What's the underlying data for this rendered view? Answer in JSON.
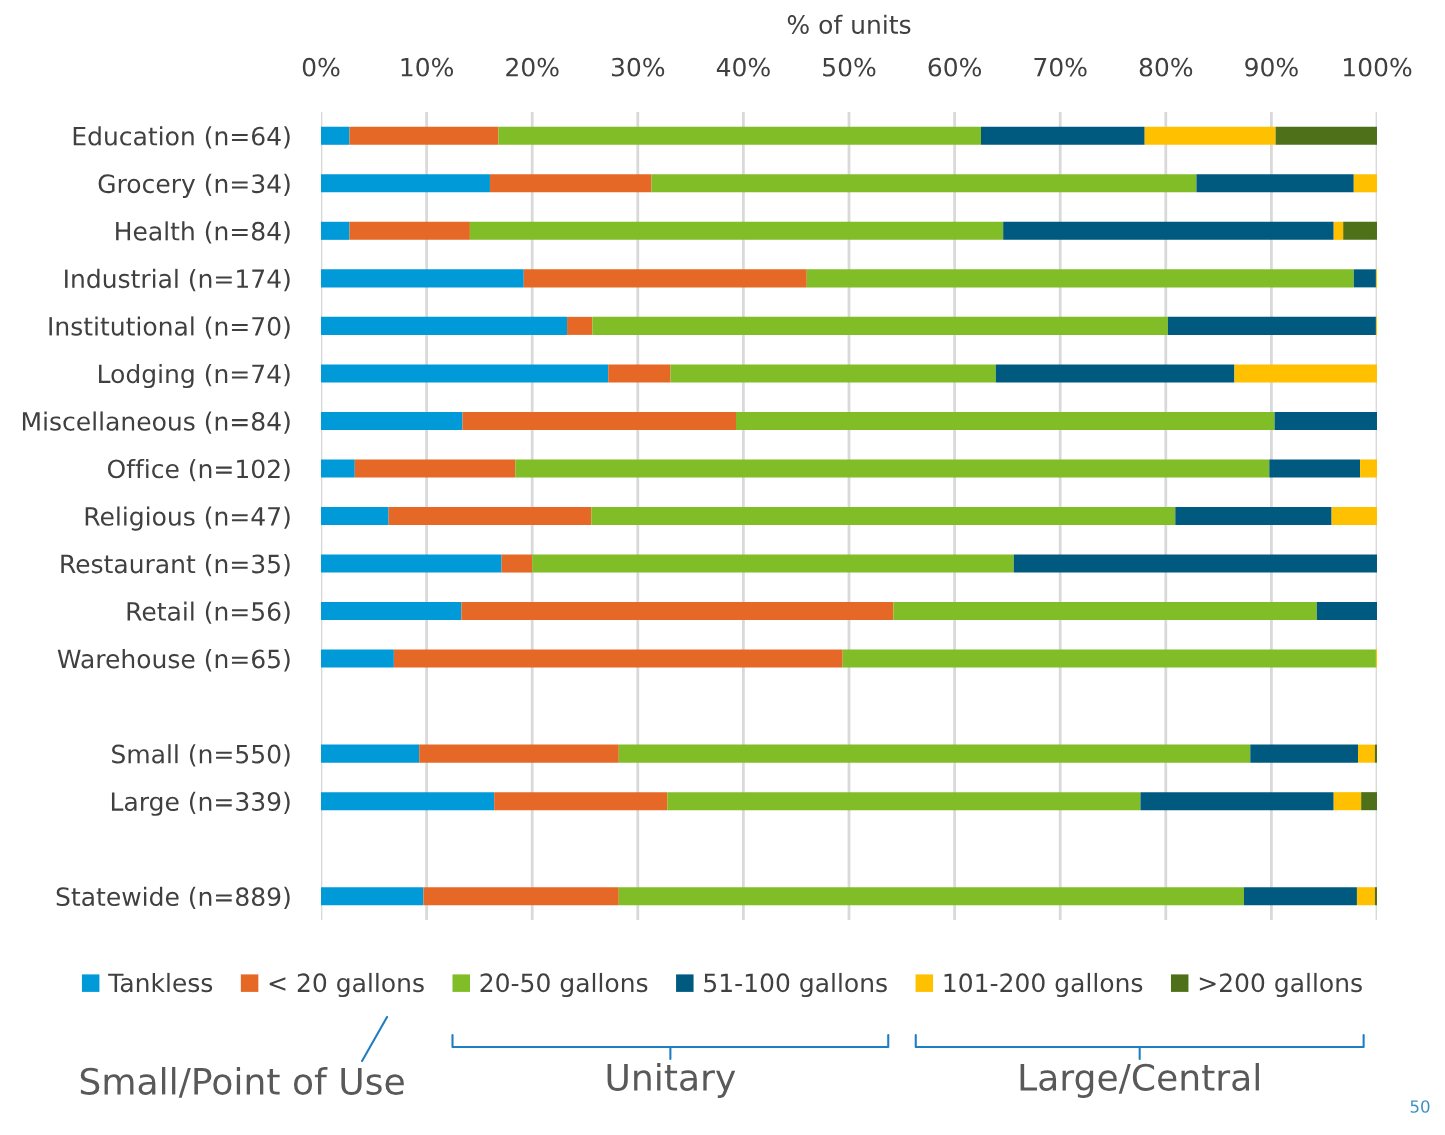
{
  "chart_data": {
    "type": "bar",
    "orientation": "horizontal",
    "stacked": true,
    "xlabel": "% of units",
    "categories": [
      "Education (n=64)",
      "Grocery (n=34)",
      "Health (n=84)",
      "Industrial (n=174)",
      "Institutional (n=70)",
      "Lodging (n=74)",
      "Miscellaneous (n=84)",
      "Office (n=102)",
      "Religious (n=47)",
      "Restaurant (n=35)",
      "Retail (n=56)",
      "Warehouse (n=65)",
      null,
      "Small (n=550)",
      "Large (n=339)",
      null,
      "Statewide (n=889)"
    ],
    "series": [
      {
        "name": "Tankless",
        "color": "#009ad9",
        "values": [
          2.7,
          16.0,
          2.7,
          19.2,
          23.3,
          27.2,
          13.4,
          3.2,
          6.4,
          17.1,
          13.3,
          6.9,
          null,
          9.3,
          16.4,
          null,
          9.7
        ]
      },
      {
        "name": "< 20 gallons",
        "color": "#e66826",
        "values": [
          14.1,
          15.3,
          11.4,
          26.8,
          2.4,
          5.9,
          25.9,
          15.2,
          19.2,
          2.9,
          40.9,
          42.5,
          null,
          18.9,
          16.4,
          null,
          18.5
        ]
      },
      {
        "name": "20-50 gallons",
        "color": "#80bd26",
        "values": [
          45.7,
          51.6,
          50.5,
          51.8,
          54.5,
          30.8,
          51.0,
          71.4,
          55.3,
          45.6,
          40.1,
          50.5,
          null,
          59.8,
          44.8,
          null,
          59.2
        ]
      },
      {
        "name": "51-100 gallons",
        "color": "#005a80",
        "values": [
          15.5,
          14.9,
          31.3,
          2.1,
          19.7,
          22.6,
          9.7,
          8.6,
          14.8,
          34.4,
          5.7,
          0,
          null,
          10.2,
          18.3,
          null,
          10.7
        ]
      },
      {
        "name": "101-200 gallons",
        "color": "#ffc000",
        "values": [
          12.4,
          2.2,
          0.9,
          0.1,
          0.1,
          13.5,
          0,
          1.6,
          4.3,
          0,
          0,
          0.1,
          null,
          1.6,
          2.6,
          null,
          1.7
        ]
      },
      {
        "name": ">200 gallons",
        "color": "#4e7018",
        "values": [
          9.6,
          0,
          3.2,
          0,
          0,
          0,
          0,
          0,
          0,
          0,
          0,
          0,
          null,
          0.2,
          1.5,
          null,
          0.2
        ]
      }
    ],
    "xlim": [
      0,
      100
    ],
    "xticks": [
      {
        "value": 0,
        "label": "0%"
      },
      {
        "value": 10,
        "label": "10%"
      },
      {
        "value": 20,
        "label": "20%"
      },
      {
        "value": 30,
        "label": "30%"
      },
      {
        "value": 40,
        "label": "40%"
      },
      {
        "value": 50,
        "label": "50%"
      },
      {
        "value": 60,
        "label": "60%"
      },
      {
        "value": 70,
        "label": "70%"
      },
      {
        "value": 80,
        "label": "80%"
      },
      {
        "value": 90,
        "label": "90%"
      },
      {
        "value": 100,
        "label": "100%"
      }
    ],
    "grid": "x",
    "legend": "bottom",
    "annotations": [
      "Small/Point of Use",
      "Unitary",
      "Large/Central",
      "50"
    ]
  }
}
